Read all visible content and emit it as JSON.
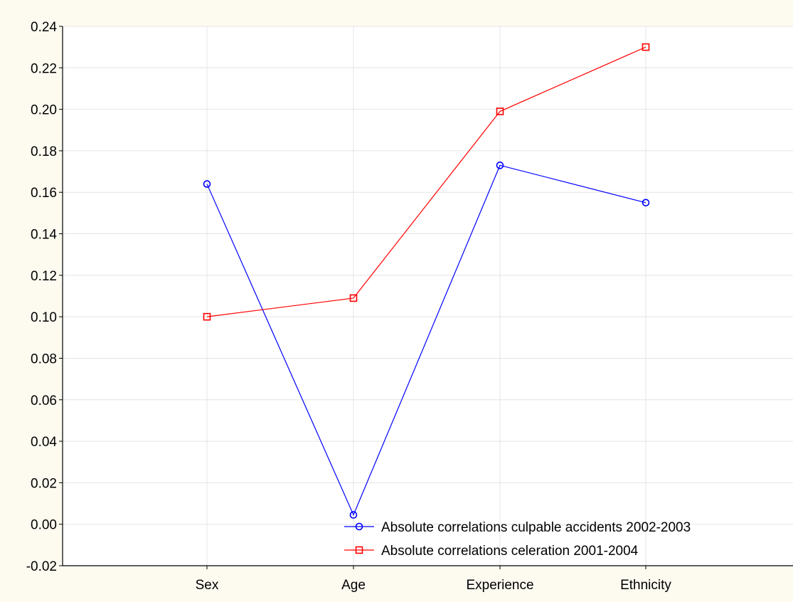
{
  "chart_data": {
    "type": "line",
    "title": "",
    "xlabel": "",
    "ylabel": "",
    "categories": [
      "Sex",
      "Age",
      "Experience",
      "Ethnicity"
    ],
    "ylim": [
      -0.02,
      0.24
    ],
    "yticks": [
      "0.24",
      "0.22",
      "0.20",
      "0.18",
      "0.16",
      "0.14",
      "0.12",
      "0.10",
      "0.08",
      "0.06",
      "0.04",
      "0.02",
      "0.00",
      "-0.02"
    ],
    "grid": true,
    "legend_position": "bottom-right",
    "series": [
      {
        "name": "Absolute correlations culpable accidents 2002-2003",
        "values": [
          0.164,
          0.0045,
          0.173,
          0.155
        ],
        "color": "#0000ff",
        "marker": "circle"
      },
      {
        "name": "Absolute correlations celeration 2001-2004",
        "values": [
          0.1,
          0.109,
          0.199,
          0.23
        ],
        "color": "#ff0000",
        "marker": "square"
      }
    ]
  },
  "colors": {
    "background": "#fdfaf0",
    "plot_background": "#ffffff",
    "grid": "#e4e4e4",
    "axis": "#000000"
  }
}
